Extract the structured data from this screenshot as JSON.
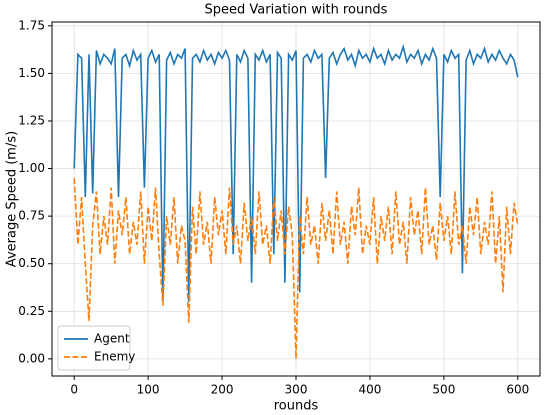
{
  "chart_data": {
    "type": "line",
    "title": "Speed Variation with rounds",
    "xlabel": "rounds",
    "ylabel": "Average Speed (m/s)",
    "x": [
      0,
      5,
      10,
      15,
      20,
      25,
      30,
      35,
      40,
      45,
      50,
      55,
      60,
      65,
      70,
      75,
      80,
      85,
      90,
      95,
      100,
      105,
      110,
      115,
      120,
      125,
      130,
      135,
      140,
      145,
      150,
      155,
      160,
      165,
      170,
      175,
      180,
      185,
      190,
      195,
      200,
      205,
      210,
      215,
      220,
      225,
      230,
      235,
      240,
      245,
      250,
      255,
      260,
      265,
      270,
      275,
      280,
      285,
      290,
      295,
      300,
      305,
      310,
      315,
      320,
      325,
      330,
      335,
      340,
      345,
      350,
      355,
      360,
      365,
      370,
      375,
      380,
      385,
      390,
      395,
      400,
      405,
      410,
      415,
      420,
      425,
      430,
      435,
      440,
      445,
      450,
      455,
      460,
      465,
      470,
      475,
      480,
      485,
      490,
      495,
      500,
      505,
      510,
      515,
      520,
      525,
      530,
      535,
      540,
      545,
      550,
      555,
      560,
      565,
      570,
      575,
      580,
      585,
      590,
      595,
      600
    ],
    "series": [
      {
        "name": "Agent",
        "color": "#1f77b4",
        "linestyle": "solid",
        "values": [
          1.0,
          1.6,
          1.58,
          0.85,
          1.6,
          0.87,
          1.62,
          1.55,
          1.6,
          1.58,
          1.55,
          1.63,
          0.85,
          1.58,
          1.6,
          1.54,
          1.62,
          1.57,
          1.6,
          0.9,
          1.58,
          1.62,
          1.56,
          1.6,
          0.3,
          1.57,
          1.61,
          1.55,
          1.6,
          1.58,
          1.63,
          0.3,
          1.58,
          1.6,
          1.56,
          1.62,
          1.57,
          1.6,
          1.55,
          1.61,
          1.58,
          1.62,
          1.57,
          0.55,
          1.6,
          1.56,
          1.62,
          1.58,
          0.4,
          1.6,
          1.57,
          1.62,
          1.56,
          1.6,
          0.55,
          1.61,
          1.58,
          0.4,
          1.6,
          1.57,
          1.62,
          0.35,
          1.58,
          1.6,
          1.56,
          1.62,
          1.58,
          1.6,
          0.95,
          1.58,
          1.61,
          1.55,
          1.6,
          1.63,
          1.57,
          1.6,
          1.54,
          1.62,
          1.58,
          1.6,
          1.56,
          1.63,
          1.58,
          1.6,
          1.55,
          1.62,
          1.57,
          1.6,
          1.58,
          1.64,
          1.56,
          1.6,
          1.58,
          1.62,
          1.55,
          1.6,
          1.57,
          1.63,
          1.58,
          0.85,
          1.6,
          1.56,
          1.62,
          1.58,
          1.6,
          0.45,
          1.57,
          1.62,
          1.55,
          1.6,
          1.58,
          1.63,
          1.56,
          1.6,
          1.57,
          1.62,
          1.58,
          1.55,
          1.6,
          1.57,
          1.48
        ]
      },
      {
        "name": "Enemy",
        "color": "#ff7f0e",
        "linestyle": "dashed",
        "values": [
          0.95,
          0.6,
          0.85,
          0.5,
          0.2,
          0.7,
          0.88,
          0.55,
          0.75,
          0.6,
          0.9,
          0.5,
          0.78,
          0.65,
          0.85,
          0.55,
          0.72,
          0.6,
          0.88,
          0.5,
          0.8,
          0.62,
          0.9,
          0.55,
          0.28,
          0.75,
          0.6,
          0.85,
          0.5,
          0.7,
          0.62,
          0.19,
          0.8,
          0.55,
          0.88,
          0.6,
          0.72,
          0.5,
          0.85,
          0.65,
          0.78,
          0.55,
          0.9,
          0.6,
          0.7,
          0.5,
          0.82,
          0.62,
          0.75,
          0.55,
          0.88,
          0.6,
          0.7,
          0.5,
          0.85,
          0.62,
          0.78,
          0.55,
          0.8,
          0.65,
          0.0,
          0.75,
          0.55,
          0.85,
          0.6,
          0.7,
          0.5,
          0.82,
          0.62,
          0.78,
          0.55,
          0.88,
          0.6,
          0.72,
          0.5,
          0.8,
          0.65,
          0.9,
          0.55,
          0.7,
          0.6,
          0.85,
          0.5,
          0.75,
          0.62,
          0.8,
          0.55,
          0.88,
          0.6,
          0.72,
          0.5,
          0.85,
          0.65,
          0.78,
          0.55,
          0.9,
          0.6,
          0.7,
          0.52,
          0.82,
          0.62,
          0.75,
          0.55,
          0.88,
          0.6,
          0.7,
          0.5,
          0.8,
          0.65,
          0.85,
          0.55,
          0.72,
          0.6,
          0.88,
          0.5,
          0.75,
          0.35,
          0.8,
          0.55,
          0.82,
          0.7
        ]
      }
    ],
    "xlim": [
      -30,
      630
    ],
    "ylim": [
      -0.09,
      1.77
    ],
    "xticks": [
      0,
      100,
      200,
      300,
      400,
      500,
      600
    ],
    "yticks": [
      {
        "value": 0,
        "label": "0.00"
      },
      {
        "value": 0.25,
        "label": "0.25"
      },
      {
        "value": 0.5,
        "label": "0.50"
      },
      {
        "value": 0.75,
        "label": "0.75"
      },
      {
        "value": 1,
        "label": "1.00"
      },
      {
        "value": 1.25,
        "label": "1.25"
      },
      {
        "value": 1.5,
        "label": "1.50"
      },
      {
        "value": 1.75,
        "label": "1.75"
      }
    ],
    "grid": true,
    "legend": "lower left"
  }
}
